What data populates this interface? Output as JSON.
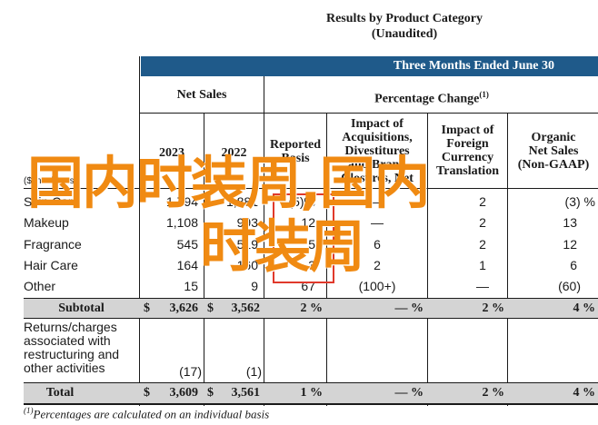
{
  "title": {
    "line1": "Results by Product Category",
    "line2": "(Unaudited)"
  },
  "band": "Three Months Ended June 30",
  "net_sales_header": "Net Sales",
  "pct_change_header": "Percentage Change",
  "pct_change_sup": "(1)",
  "col_headers": [
    "2023",
    "2022",
    "Reported Basis",
    "Impact of Acquisitions, Divestitures and Brand Closures, Net",
    "Impact of Foreign Currency Translation",
    "Organic Net Sales (Non-GAAP)"
  ],
  "col_header_lines": {
    "reported": [
      "Reported",
      "Basis"
    ],
    "acq": [
      "Impact of",
      "Acquisitions,",
      "Divestitures",
      "and Brand",
      "Closures, Net"
    ],
    "fx": [
      "Impact of",
      "Foreign",
      "Currency",
      "Translation"
    ],
    "organic": [
      "Organic",
      "Net Sales",
      "(Non-GAAP)"
    ]
  },
  "dollar_unit": "($ in millions)",
  "rows": [
    {
      "label": "Skin Care",
      "v2023": "1,794",
      "v2022": "1,881",
      "reported": "(5)%",
      "acq": "—",
      "fx": "2",
      "organic": "(3) %"
    },
    {
      "label": "Makeup",
      "v2023": "1,108",
      "v2022": "993",
      "reported": "12",
      "acq": "—",
      "fx": "2",
      "organic": "13"
    },
    {
      "label": "Fragrance",
      "v2023": "545",
      "v2022": "519",
      "reported": "5",
      "acq": "6",
      "fx": "2",
      "organic": "12"
    },
    {
      "label": "Hair Care",
      "v2023": "164",
      "v2022": "160",
      "reported": "3",
      "acq": "2",
      "fx": "1",
      "organic": "6"
    },
    {
      "label": "Other",
      "v2023": "15",
      "v2022": "9",
      "reported": "67",
      "acq": "(100+)",
      "fx": "—",
      "organic": "(60)"
    }
  ],
  "subtotal": {
    "label": "Subtotal",
    "d1": "$",
    "v2023": "3,626",
    "d2": "$",
    "v2022": "3,562",
    "reported": "2 %",
    "acq": "— %",
    "fx": "2 %",
    "organic": "4 %"
  },
  "returns": {
    "lines": [
      "Returns/charges",
      "associated with",
      "restructuring and",
      "other activities"
    ],
    "v2023": "(17)",
    "v2022": "(1)"
  },
  "total": {
    "label": "Total",
    "d1": "$",
    "v2023": "3,609",
    "d2": "$",
    "v2022": "3,561",
    "reported": "1 %",
    "acq": "— %",
    "fx": "2 %",
    "organic": "4 %"
  },
  "footnote": {
    "sup": "(1)",
    "text": "Percentages are calculated on an individual basis"
  },
  "overlay": {
    "line1": "国内时装周,国内",
    "line2": "时装周"
  },
  "colors": {
    "band": "#1f5a8a",
    "subtotal_bg": "#d4d4d4",
    "overlay_text": "#f08a12",
    "highlight_box": "#e0392b"
  }
}
